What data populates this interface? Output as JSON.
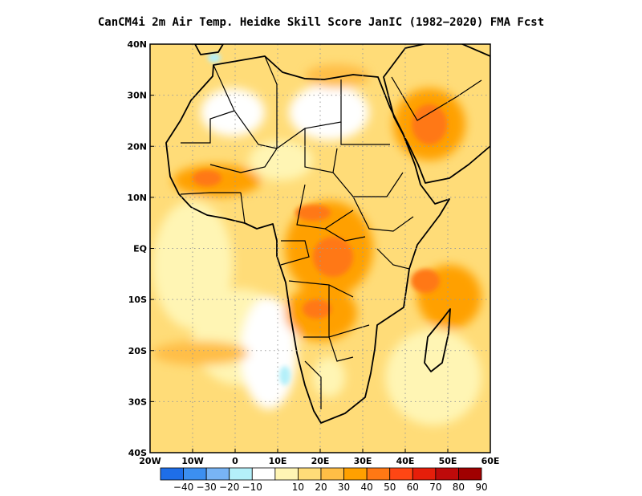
{
  "title": "CanCM4i  2m Air Temp. Heidke Skill Score JanIC (1982−2020) FMA Fcst",
  "map": {
    "lon_range": [
      -20,
      60
    ],
    "lat_range": [
      -40,
      40
    ],
    "lat_ticks": [
      {
        "value": 40,
        "label": "40N"
      },
      {
        "value": 30,
        "label": "30N"
      },
      {
        "value": 20,
        "label": "20N"
      },
      {
        "value": 10,
        "label": "10N"
      },
      {
        "value": 0,
        "label": "EQ"
      },
      {
        "value": -10,
        "label": "10S"
      },
      {
        "value": -20,
        "label": "20S"
      },
      {
        "value": -30,
        "label": "30S"
      },
      {
        "value": -40,
        "label": "40S"
      }
    ],
    "lon_ticks": [
      {
        "value": -20,
        "label": "20W"
      },
      {
        "value": -10,
        "label": "10W"
      },
      {
        "value": 0,
        "label": "0"
      },
      {
        "value": 10,
        "label": "10E"
      },
      {
        "value": 20,
        "label": "20E"
      },
      {
        "value": 30,
        "label": "30E"
      },
      {
        "value": 40,
        "label": "40E"
      },
      {
        "value": 50,
        "label": "50E"
      },
      {
        "value": 60,
        "label": "60E"
      }
    ],
    "grid": "dotted"
  },
  "colorbar": {
    "colors": [
      "#1e6ee8",
      "#3c8ff0",
      "#78b4f5",
      "#b4f0fa",
      "#ffffff",
      "#fff5b4",
      "#ffdc78",
      "#ffbe46",
      "#ffa000",
      "#ff7814",
      "#ff4614",
      "#e61e0a",
      "#be0a0a",
      "#a00000"
    ],
    "labels": [
      "−40",
      "−30",
      "−20",
      "−10",
      "10",
      "20",
      "30",
      "40",
      "50",
      "60",
      "70",
      "80",
      "90"
    ]
  },
  "skill_regions": [
    {
      "level": 10,
      "lon": 30,
      "lat": 30
    },
    {
      "level": 50,
      "lon": 25,
      "lat": -5
    },
    {
      "level": 60,
      "lon": 25,
      "lat": -3
    },
    {
      "level": 60,
      "lon": 45,
      "lat": 22
    },
    {
      "level": 50,
      "lon": 45,
      "lat": -10
    },
    {
      "level": -10,
      "lon": 8,
      "lat": -27
    },
    {
      "level": -20,
      "lon": -6,
      "lat": 39
    }
  ]
}
